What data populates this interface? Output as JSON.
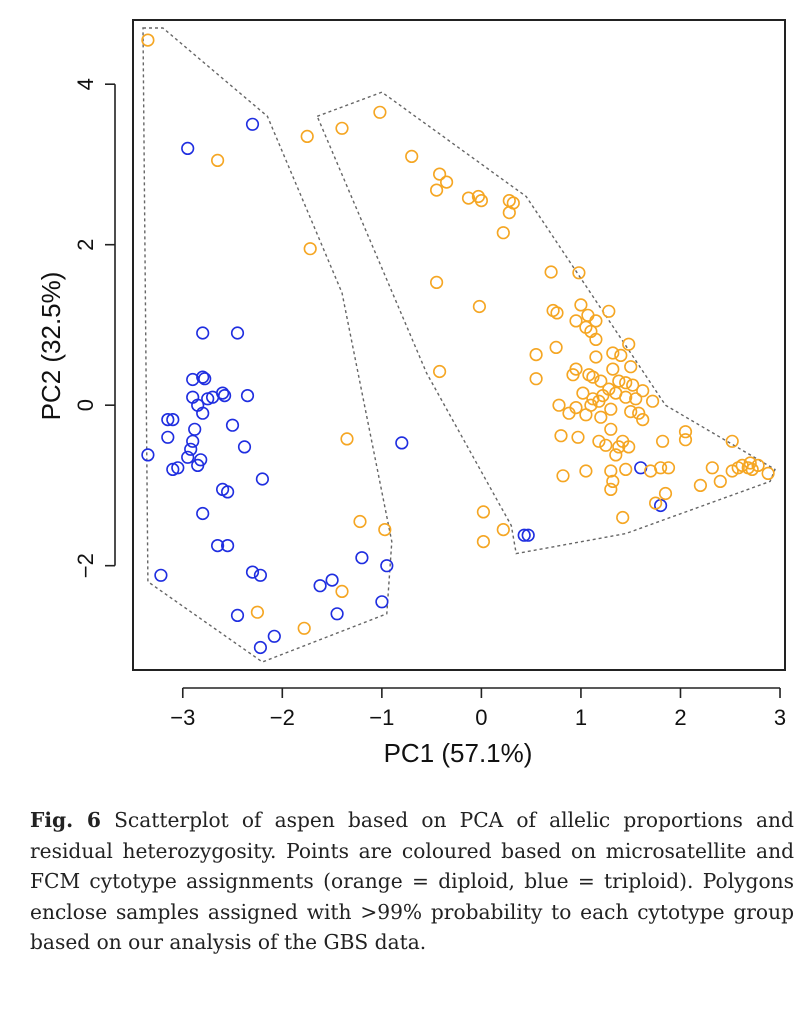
{
  "caption": {
    "label": "Fig. 6",
    "text": "Scatterplot of aspen based on PCA of allelic proportions and residual heterozygosity. Points are coloured based on microsatellite and FCM cytotype assignments (orange = diploid, blue = triploid). Polygons enclose samples assigned with >99% probability to each cytotype group based on our analysis of the GBS data."
  },
  "chart_data": {
    "type": "scatter",
    "title": "",
    "xlabel": "PC1 (57.1%)",
    "ylabel": "PC2 (32.5%)",
    "xlim": [
      -3.5,
      3.05
    ],
    "ylim": [
      -3.3,
      4.8
    ],
    "xticks": [
      -3,
      -2,
      -1,
      0,
      1,
      2,
      3
    ],
    "yticks": [
      -2,
      0,
      2,
      4
    ],
    "xtick_labels": [
      "−3",
      "−2",
      "−1",
      "0",
      "1",
      "2",
      "3"
    ],
    "ytick_labels": [
      "−2",
      "0",
      "2",
      "4"
    ],
    "grid": false,
    "marker": "open-circle",
    "colors": {
      "diploid": "#f5a623",
      "triploid": "#1f2ee0",
      "polygon": "#666666",
      "axes": "#222222"
    },
    "series": [
      {
        "color_key": "triploid",
        "points": [
          [
            -2.3,
            3.5
          ],
          [
            -2.95,
            3.2
          ],
          [
            -2.8,
            0.9
          ],
          [
            -2.45,
            0.9
          ],
          [
            -2.9,
            0.32
          ],
          [
            -2.8,
            0.35
          ],
          [
            -2.78,
            0.33
          ],
          [
            -2.6,
            0.15
          ],
          [
            -2.58,
            0.12
          ],
          [
            -2.35,
            0.12
          ],
          [
            -2.9,
            0.1
          ],
          [
            -2.75,
            0.08
          ],
          [
            -2.7,
            0.1
          ],
          [
            -2.85,
            0.0
          ],
          [
            -2.8,
            -0.1
          ],
          [
            -3.15,
            -0.18
          ],
          [
            -3.1,
            -0.18
          ],
          [
            -2.88,
            -0.3
          ],
          [
            -2.5,
            -0.25
          ],
          [
            -2.9,
            -0.45
          ],
          [
            -3.15,
            -0.4
          ],
          [
            -2.92,
            -0.55
          ],
          [
            -2.38,
            -0.52
          ],
          [
            -3.35,
            -0.62
          ],
          [
            -2.95,
            -0.65
          ],
          [
            -2.82,
            -0.68
          ],
          [
            -3.05,
            -0.78
          ],
          [
            -3.1,
            -0.8
          ],
          [
            -2.85,
            -0.75
          ],
          [
            -2.6,
            -1.05
          ],
          [
            -2.55,
            -1.08
          ],
          [
            -2.2,
            -0.92
          ],
          [
            -2.8,
            -1.35
          ],
          [
            -2.65,
            -1.75
          ],
          [
            -2.55,
            -1.75
          ],
          [
            -1.2,
            -1.9
          ],
          [
            -3.22,
            -2.12
          ],
          [
            -2.3,
            -2.08
          ],
          [
            -2.22,
            -2.12
          ],
          [
            -0.95,
            -2.0
          ],
          [
            -1.62,
            -2.25
          ],
          [
            -1.5,
            -2.18
          ],
          [
            -2.45,
            -2.62
          ],
          [
            -1.45,
            -2.6
          ],
          [
            -1.0,
            -2.45
          ],
          [
            -2.08,
            -2.88
          ],
          [
            -2.22,
            -3.02
          ],
          [
            -0.8,
            -0.47
          ],
          [
            1.6,
            -0.78
          ],
          [
            1.8,
            -1.25
          ],
          [
            0.43,
            -1.62
          ],
          [
            0.47,
            -1.62
          ]
        ]
      },
      {
        "color_key": "diploid",
        "points": [
          [
            -3.35,
            4.55
          ],
          [
            -2.65,
            3.05
          ],
          [
            -1.75,
            3.35
          ],
          [
            -1.72,
            1.95
          ],
          [
            -1.4,
            3.45
          ],
          [
            -1.02,
            3.65
          ],
          [
            -0.7,
            3.1
          ],
          [
            -0.42,
            2.88
          ],
          [
            -0.35,
            2.78
          ],
          [
            -0.45,
            2.68
          ],
          [
            -0.13,
            2.58
          ],
          [
            -0.03,
            2.6
          ],
          [
            0.0,
            2.55
          ],
          [
            0.28,
            2.55
          ],
          [
            0.32,
            2.52
          ],
          [
            0.28,
            2.4
          ],
          [
            0.22,
            2.15
          ],
          [
            -0.45,
            1.53
          ],
          [
            -0.02,
            1.23
          ],
          [
            -0.42,
            0.42
          ],
          [
            -1.35,
            -0.42
          ],
          [
            -1.22,
            -1.45
          ],
          [
            -0.97,
            -1.55
          ],
          [
            0.02,
            -1.33
          ],
          [
            0.02,
            -1.7
          ],
          [
            0.22,
            -1.55
          ],
          [
            -1.4,
            -2.32
          ],
          [
            -1.78,
            -2.78
          ],
          [
            -2.25,
            -2.58
          ],
          [
            0.7,
            1.66
          ],
          [
            0.98,
            1.65
          ],
          [
            1.0,
            1.25
          ],
          [
            0.72,
            1.18
          ],
          [
            0.76,
            1.15
          ],
          [
            1.07,
            1.12
          ],
          [
            1.28,
            1.17
          ],
          [
            0.95,
            1.05
          ],
          [
            1.15,
            1.05
          ],
          [
            1.05,
            0.97
          ],
          [
            1.1,
            0.92
          ],
          [
            0.75,
            0.72
          ],
          [
            1.15,
            0.82
          ],
          [
            1.48,
            0.76
          ],
          [
            1.32,
            0.65
          ],
          [
            1.4,
            0.62
          ],
          [
            1.15,
            0.6
          ],
          [
            0.55,
            0.63
          ],
          [
            0.95,
            0.45
          ],
          [
            1.5,
            0.48
          ],
          [
            1.32,
            0.45
          ],
          [
            0.92,
            0.38
          ],
          [
            1.08,
            0.38
          ],
          [
            1.12,
            0.35
          ],
          [
            1.2,
            0.3
          ],
          [
            1.38,
            0.3
          ],
          [
            1.45,
            0.28
          ],
          [
            1.52,
            0.25
          ],
          [
            0.55,
            0.33
          ],
          [
            1.28,
            0.2
          ],
          [
            1.35,
            0.15
          ],
          [
            1.22,
            0.12
          ],
          [
            1.62,
            0.18
          ],
          [
            1.02,
            0.15
          ],
          [
            1.12,
            0.08
          ],
          [
            1.18,
            0.05
          ],
          [
            1.45,
            0.1
          ],
          [
            1.55,
            0.08
          ],
          [
            1.72,
            0.05
          ],
          [
            0.78,
            0.0
          ],
          [
            0.95,
            -0.03
          ],
          [
            1.1,
            0.0
          ],
          [
            1.3,
            -0.05
          ],
          [
            1.5,
            -0.08
          ],
          [
            1.58,
            -0.1
          ],
          [
            0.88,
            -0.1
          ],
          [
            1.05,
            -0.12
          ],
          [
            1.2,
            -0.15
          ],
          [
            1.62,
            -0.18
          ],
          [
            1.3,
            -0.3
          ],
          [
            0.8,
            -0.38
          ],
          [
            0.97,
            -0.4
          ],
          [
            1.18,
            -0.45
          ],
          [
            1.42,
            -0.45
          ],
          [
            1.48,
            -0.52
          ],
          [
            1.38,
            -0.52
          ],
          [
            1.25,
            -0.5
          ],
          [
            1.35,
            -0.62
          ],
          [
            1.82,
            -0.45
          ],
          [
            2.05,
            -0.33
          ],
          [
            2.05,
            -0.43
          ],
          [
            1.45,
            -0.8
          ],
          [
            1.7,
            -0.82
          ],
          [
            1.8,
            -0.78
          ],
          [
            1.88,
            -0.78
          ],
          [
            2.32,
            -0.78
          ],
          [
            1.05,
            -0.82
          ],
          [
            1.3,
            -0.82
          ],
          [
            1.32,
            -0.95
          ],
          [
            0.82,
            -0.88
          ],
          [
            1.3,
            -1.05
          ],
          [
            1.75,
            -1.22
          ],
          [
            1.85,
            -1.1
          ],
          [
            1.42,
            -1.4
          ],
          [
            2.2,
            -1.0
          ],
          [
            2.4,
            -0.95
          ],
          [
            2.52,
            -0.45
          ],
          [
            2.52,
            -0.82
          ],
          [
            2.58,
            -0.78
          ],
          [
            2.62,
            -0.75
          ],
          [
            2.68,
            -0.78
          ],
          [
            2.72,
            -0.8
          ],
          [
            2.78,
            -0.75
          ],
          [
            2.88,
            -0.85
          ],
          [
            2.7,
            -0.72
          ]
        ]
      }
    ],
    "polygons": [
      {
        "vertices": [
          [
            -3.4,
            4.7
          ],
          [
            -3.2,
            4.7
          ],
          [
            -2.15,
            3.6
          ],
          [
            -1.4,
            1.4
          ],
          [
            -0.9,
            -1.7
          ],
          [
            -0.95,
            -2.6
          ],
          [
            -2.2,
            -3.2
          ],
          [
            -3.35,
            -2.2
          ]
        ]
      },
      {
        "vertices": [
          [
            -1.65,
            3.6
          ],
          [
            -1.0,
            3.9
          ],
          [
            0.45,
            2.6
          ],
          [
            1.85,
            0.0
          ],
          [
            2.95,
            -0.8
          ],
          [
            2.9,
            -0.95
          ],
          [
            1.45,
            -1.6
          ],
          [
            0.35,
            -1.85
          ],
          [
            0.3,
            -1.5
          ],
          [
            -0.55,
            0.4
          ]
        ]
      }
    ]
  }
}
